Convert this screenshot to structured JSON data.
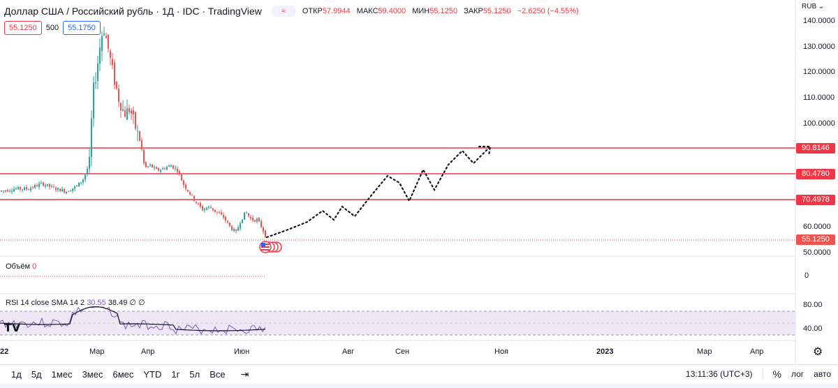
{
  "header": {
    "title": "Доллар США / Российский рубль · 1Д · IDC · TradingView",
    "legend_icon": "≈",
    "ohlc": [
      {
        "key": "ОТКР",
        "value": "57.9944"
      },
      {
        "key": "МАКС",
        "value": "59.4000"
      },
      {
        "key": "МИН",
        "value": "55.1250"
      },
      {
        "key": "ЗАКР",
        "value": "55.1250"
      },
      {
        "key": "",
        "value": "−2.6250 (−4.55%)"
      }
    ]
  },
  "trade": {
    "sell_price": "55.1250",
    "quantity": "500",
    "buy_price": "55.1750"
  },
  "axis": {
    "currency": "RUB",
    "labels": [
      "140.0000",
      "130.0000",
      "120.0000",
      "110.0000",
      "100.0000",
      "60.0000",
      "50.0000"
    ],
    "volume_zero": "0",
    "rsi_labels": [
      "80.00",
      "40.00"
    ]
  },
  "levels": [
    "90.8146",
    "80.4780",
    "70.4978"
  ],
  "last_price": "55.1250",
  "colors": {
    "up": "#26a69a",
    "down": "#ef5350",
    "level_line": "#f23645",
    "rsi": "#7e57c2",
    "sma": "#131722",
    "rsi_band": "#ede7f6"
  },
  "volume": {
    "label": "Объём",
    "value": "0"
  },
  "rsi": {
    "label": "RSI 14 close SMA 14 2",
    "value1": "30.55",
    "value2": "38.49",
    "value3": "∅",
    "value4": "∅"
  },
  "time_axis": {
    "labels": [
      "22",
      "Мар",
      "Апр",
      "Июн",
      "Авг",
      "Сен",
      "Ноя",
      "2023",
      "Мар",
      "Апр"
    ]
  },
  "bottom": {
    "ranges": [
      "1д",
      "5д",
      "1мес",
      "3мес",
      "6мес",
      "YTD",
      "1г",
      "5л",
      "Все"
    ],
    "time": "13:11:36 (UTC+3)",
    "percent": "%",
    "log": "лог",
    "auto": "авто"
  },
  "icons": [
    "gear-icon",
    "calendar-range-icon",
    "currency-flag-icon",
    "tradingview-logo-icon",
    "dropdown-chevron-icon"
  ]
}
